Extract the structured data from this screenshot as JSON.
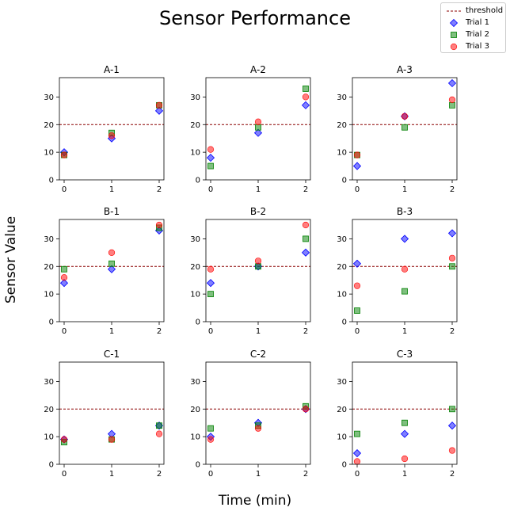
{
  "title": "Sensor Performance",
  "xlabel": "Time (min)",
  "ylabel": "Sensor Value",
  "legend": {
    "placement": "top-right",
    "entries": [
      {
        "label": "threshold",
        "kind": "line",
        "color": "#8b0000"
      },
      {
        "label": "Trial 1",
        "kind": "diamond",
        "color": "#0000ff"
      },
      {
        "label": "Trial 2",
        "kind": "square",
        "color": "#008000"
      },
      {
        "label": "Trial 3",
        "kind": "circle",
        "color": "#ff0000"
      }
    ]
  },
  "chart_data": [
    {
      "title": "A-1",
      "type": "scatter",
      "x": [
        0,
        1,
        2
      ],
      "xticks": [
        0,
        1,
        2
      ],
      "yticks": [
        0,
        10,
        20,
        30
      ],
      "ylim": [
        0,
        37
      ],
      "threshold": 20,
      "series": [
        {
          "name": "Trial 1",
          "values": [
            10,
            15,
            25
          ]
        },
        {
          "name": "Trial 2",
          "values": [
            9,
            17,
            27
          ]
        },
        {
          "name": "Trial 3",
          "values": [
            9,
            16,
            27
          ]
        }
      ]
    },
    {
      "title": "A-2",
      "type": "scatter",
      "x": [
        0,
        1,
        2
      ],
      "xticks": [
        0,
        1,
        2
      ],
      "yticks": [
        0,
        10,
        20,
        30
      ],
      "ylim": [
        0,
        37
      ],
      "threshold": 20,
      "series": [
        {
          "name": "Trial 1",
          "values": [
            8,
            17,
            27
          ]
        },
        {
          "name": "Trial 2",
          "values": [
            5,
            19,
            33
          ]
        },
        {
          "name": "Trial 3",
          "values": [
            11,
            21,
            30
          ]
        }
      ]
    },
    {
      "title": "A-3",
      "type": "scatter",
      "x": [
        0,
        1,
        2
      ],
      "xticks": [
        0,
        1,
        2
      ],
      "yticks": [
        0,
        10,
        20,
        30
      ],
      "ylim": [
        0,
        37
      ],
      "threshold": 20,
      "series": [
        {
          "name": "Trial 1",
          "values": [
            5,
            23,
            35
          ]
        },
        {
          "name": "Trial 2",
          "values": [
            9,
            19,
            27
          ]
        },
        {
          "name": "Trial 3",
          "values": [
            9,
            23,
            29
          ]
        }
      ]
    },
    {
      "title": "B-1",
      "type": "scatter",
      "x": [
        0,
        1,
        2
      ],
      "xticks": [
        0,
        1,
        2
      ],
      "yticks": [
        0,
        10,
        20,
        30
      ],
      "ylim": [
        0,
        37
      ],
      "threshold": 20,
      "series": [
        {
          "name": "Trial 1",
          "values": [
            14,
            19,
            33
          ]
        },
        {
          "name": "Trial 2",
          "values": [
            19,
            21,
            34
          ]
        },
        {
          "name": "Trial 3",
          "values": [
            16,
            25,
            35
          ]
        }
      ]
    },
    {
      "title": "B-2",
      "type": "scatter",
      "x": [
        0,
        1,
        2
      ],
      "xticks": [
        0,
        1,
        2
      ],
      "yticks": [
        0,
        10,
        20,
        30
      ],
      "ylim": [
        0,
        37
      ],
      "threshold": 20,
      "series": [
        {
          "name": "Trial 1",
          "values": [
            14,
            20,
            25
          ]
        },
        {
          "name": "Trial 2",
          "values": [
            10,
            20,
            30
          ]
        },
        {
          "name": "Trial 3",
          "values": [
            19,
            22,
            35
          ]
        }
      ]
    },
    {
      "title": "B-3",
      "type": "scatter",
      "x": [
        0,
        1,
        2
      ],
      "xticks": [
        0,
        1,
        2
      ],
      "yticks": [
        0,
        10,
        20,
        30
      ],
      "ylim": [
        0,
        37
      ],
      "threshold": 20,
      "series": [
        {
          "name": "Trial 1",
          "values": [
            21,
            30,
            32
          ]
        },
        {
          "name": "Trial 2",
          "values": [
            4,
            11,
            20
          ]
        },
        {
          "name": "Trial 3",
          "values": [
            13,
            19,
            23
          ]
        }
      ]
    },
    {
      "title": "C-1",
      "type": "scatter",
      "x": [
        0,
        1,
        2
      ],
      "xticks": [
        0,
        1,
        2
      ],
      "yticks": [
        0,
        10,
        20,
        30
      ],
      "ylim": [
        0,
        37
      ],
      "threshold": 20,
      "series": [
        {
          "name": "Trial 1",
          "values": [
            9,
            11,
            14
          ]
        },
        {
          "name": "Trial 2",
          "values": [
            8,
            9,
            14
          ]
        },
        {
          "name": "Trial 3",
          "values": [
            9,
            9,
            11
          ]
        }
      ]
    },
    {
      "title": "C-2",
      "type": "scatter",
      "x": [
        0,
        1,
        2
      ],
      "xticks": [
        0,
        1,
        2
      ],
      "yticks": [
        0,
        10,
        20,
        30
      ],
      "ylim": [
        0,
        37
      ],
      "threshold": 20,
      "series": [
        {
          "name": "Trial 1",
          "values": [
            10,
            15,
            20
          ]
        },
        {
          "name": "Trial 2",
          "values": [
            13,
            14,
            21
          ]
        },
        {
          "name": "Trial 3",
          "values": [
            9,
            13,
            20
          ]
        }
      ]
    },
    {
      "title": "C-3",
      "type": "scatter",
      "x": [
        0,
        1,
        2
      ],
      "xticks": [
        0,
        1,
        2
      ],
      "yticks": [
        0,
        10,
        20,
        30
      ],
      "ylim": [
        0,
        37
      ],
      "threshold": 20,
      "series": [
        {
          "name": "Trial 1",
          "values": [
            4,
            11,
            14
          ]
        },
        {
          "name": "Trial 2",
          "values": [
            11,
            15,
            20
          ]
        },
        {
          "name": "Trial 3",
          "values": [
            1,
            2,
            5
          ]
        }
      ]
    }
  ]
}
